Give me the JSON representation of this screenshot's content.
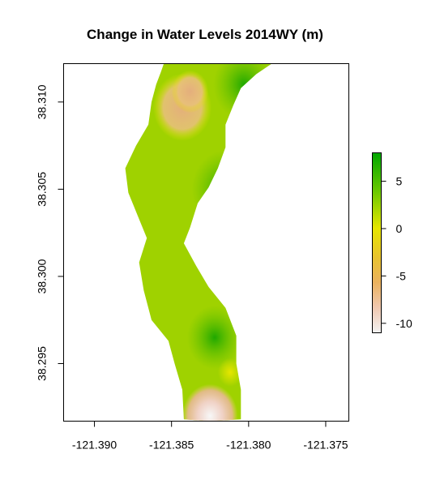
{
  "chart_data": {
    "type": "heatmap",
    "title": "Change in Water Levels 2014WY (m)",
    "xlabel": "",
    "ylabel": "",
    "xlim": [
      -121.392,
      -121.3735
    ],
    "ylim": [
      38.2917,
      38.3122
    ],
    "x_ticks": [
      {
        "value": -121.39,
        "label": "-121.390"
      },
      {
        "value": -121.385,
        "label": "-121.385"
      },
      {
        "value": -121.38,
        "label": "-121.380"
      },
      {
        "value": -121.375,
        "label": "-121.375"
      }
    ],
    "y_ticks": [
      {
        "value": 38.295,
        "label": "38.295"
      },
      {
        "value": 38.3,
        "label": "38.300"
      },
      {
        "value": 38.305,
        "label": "38.305"
      },
      {
        "value": 38.31,
        "label": "38.310"
      }
    ],
    "legend": {
      "position": "right",
      "range": [
        -11,
        8
      ],
      "ticks": [
        {
          "value": 5,
          "label": "5"
        },
        {
          "value": 0,
          "label": "0"
        },
        {
          "value": -5,
          "label": "-5"
        },
        {
          "value": -10,
          "label": "-10"
        }
      ],
      "colors": {
        "low": "#f2f2f2",
        "mid_low": "#e4b26e",
        "zero": "#e6e600",
        "high": "#00a600"
      }
    },
    "region_outline": [
      [
        -121.3855,
        38.3122
      ],
      [
        -121.3785,
        38.3122
      ],
      [
        -121.3795,
        38.3116
      ],
      [
        -121.3805,
        38.3108
      ],
      [
        -121.381,
        38.3098
      ],
      [
        -121.3815,
        38.3087
      ],
      [
        -121.3815,
        38.3074
      ],
      [
        -121.382,
        38.3062
      ],
      [
        -121.3826,
        38.3051
      ],
      [
        -121.3833,
        38.3042
      ],
      [
        -121.3838,
        38.3028
      ],
      [
        -121.3842,
        38.3019
      ],
      [
        -121.3834,
        38.3006
      ],
      [
        -121.3826,
        38.2994
      ],
      [
        -121.3815,
        38.2982
      ],
      [
        -121.3808,
        38.2966
      ],
      [
        -121.3808,
        38.295
      ],
      [
        -121.3805,
        38.2935
      ],
      [
        -121.3805,
        38.2918
      ],
      [
        -121.3825,
        38.2917
      ],
      [
        -121.3842,
        38.2918
      ],
      [
        -121.3843,
        38.2935
      ],
      [
        -121.3848,
        38.295
      ],
      [
        -121.3852,
        38.2963
      ],
      [
        -121.3863,
        38.2975
      ],
      [
        -121.3868,
        38.2992
      ],
      [
        -121.3871,
        38.3008
      ],
      [
        -121.3866,
        38.3022
      ],
      [
        -121.3872,
        38.3035
      ],
      [
        -121.3878,
        38.3048
      ],
      [
        -121.388,
        38.3062
      ],
      [
        -121.3873,
        38.3075
      ],
      [
        -121.3865,
        38.3087
      ],
      [
        -121.3863,
        38.31
      ],
      [
        -121.386,
        38.311
      ],
      [
        -121.3857,
        38.3117
      ]
    ],
    "features": [
      {
        "x": -121.3843,
        "y": 38.3097,
        "value": -4.5,
        "radius": 0.0019
      },
      {
        "x": -121.3838,
        "y": 38.3106,
        "value": -2.5,
        "radius": 0.0012
      },
      {
        "x": -121.3815,
        "y": 38.305,
        "value": 5.0,
        "radius": 0.0022
      },
      {
        "x": -121.3822,
        "y": 38.2965,
        "value": 7.0,
        "radius": 0.0018
      },
      {
        "x": -121.3803,
        "y": 38.311,
        "value": 4.0,
        "radius": 0.002
      },
      {
        "x": -121.3812,
        "y": 38.2945,
        "value": 0.0,
        "radius": 0.0008
      },
      {
        "x": -121.3825,
        "y": 38.292,
        "value": -11.0,
        "radius": 0.0018
      }
    ],
    "background_value": 2.0
  }
}
